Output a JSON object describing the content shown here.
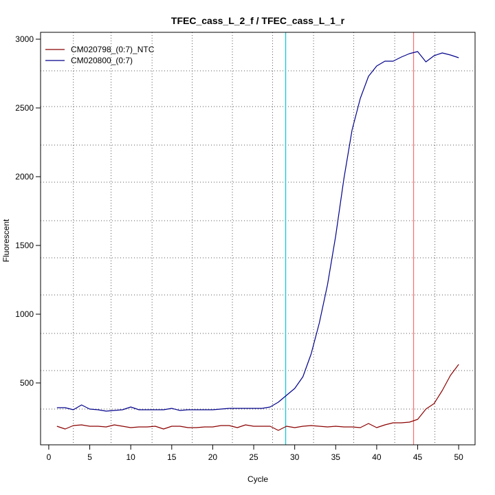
{
  "chart_data": {
    "type": "line",
    "title": "TFEC_cass_L_2_f / TFEC_cass_L_1_r",
    "xlabel": "Cycle",
    "ylabel": "Fluorescent",
    "xlim": [
      -1,
      52
    ],
    "ylim": [
      50,
      3050
    ],
    "x_ticks": [
      0,
      5,
      10,
      15,
      20,
      25,
      30,
      35,
      40,
      45,
      50
    ],
    "y_ticks": [
      500,
      1000,
      1500,
      2000,
      2500,
      3000
    ],
    "grid": {
      "style": "dotted",
      "vertical": [
        3,
        7.6,
        12.6,
        17.5,
        22.4,
        27.3,
        32.3,
        37.2,
        42.2,
        47.1
      ],
      "horizontal": [
        310,
        590,
        860,
        1140,
        1410,
        1680,
        1960,
        2230,
        2510,
        2770
      ]
    },
    "threshold_lines": [
      {
        "axis": "x",
        "value": 28.9,
        "color": "#00c8d8"
      },
      {
        "axis": "x",
        "value": 44.5,
        "color": "#ff6b6b"
      }
    ],
    "legend_position": "top-left",
    "x": [
      1,
      2,
      3,
      4,
      5,
      6,
      7,
      8,
      9,
      10,
      11,
      12,
      13,
      14,
      15,
      16,
      17,
      18,
      19,
      20,
      21,
      22,
      23,
      24,
      25,
      26,
      27,
      28,
      29,
      30,
      31,
      32,
      33,
      34,
      35,
      36,
      37,
      38,
      39,
      40,
      41,
      42,
      43,
      44,
      45,
      46,
      47,
      48,
      49,
      50
    ],
    "series": [
      {
        "name": "CM020798_(0:7)_NTC",
        "color": "#8b0000",
        "values": [
          185,
          165,
          190,
          195,
          185,
          185,
          180,
          195,
          185,
          175,
          180,
          180,
          185,
          165,
          185,
          185,
          175,
          175,
          180,
          180,
          190,
          190,
          175,
          195,
          185,
          185,
          185,
          155,
          185,
          175,
          185,
          190,
          185,
          180,
          185,
          180,
          180,
          175,
          205,
          175,
          195,
          210,
          210,
          215,
          235,
          310,
          350,
          445,
          555,
          635
        ]
      },
      {
        "name": "CM020800_(0:7)",
        "color": "#00008b",
        "values": [
          320,
          320,
          305,
          340,
          310,
          305,
          295,
          300,
          305,
          325,
          305,
          305,
          305,
          305,
          315,
          300,
          305,
          305,
          305,
          305,
          310,
          315,
          315,
          315,
          315,
          315,
          325,
          360,
          410,
          460,
          545,
          710,
          935,
          1215,
          1570,
          1985,
          2340,
          2570,
          2730,
          2805,
          2840,
          2840,
          2870,
          2895,
          2910,
          2835,
          2880,
          2900,
          2885,
          2865
        ]
      }
    ]
  }
}
